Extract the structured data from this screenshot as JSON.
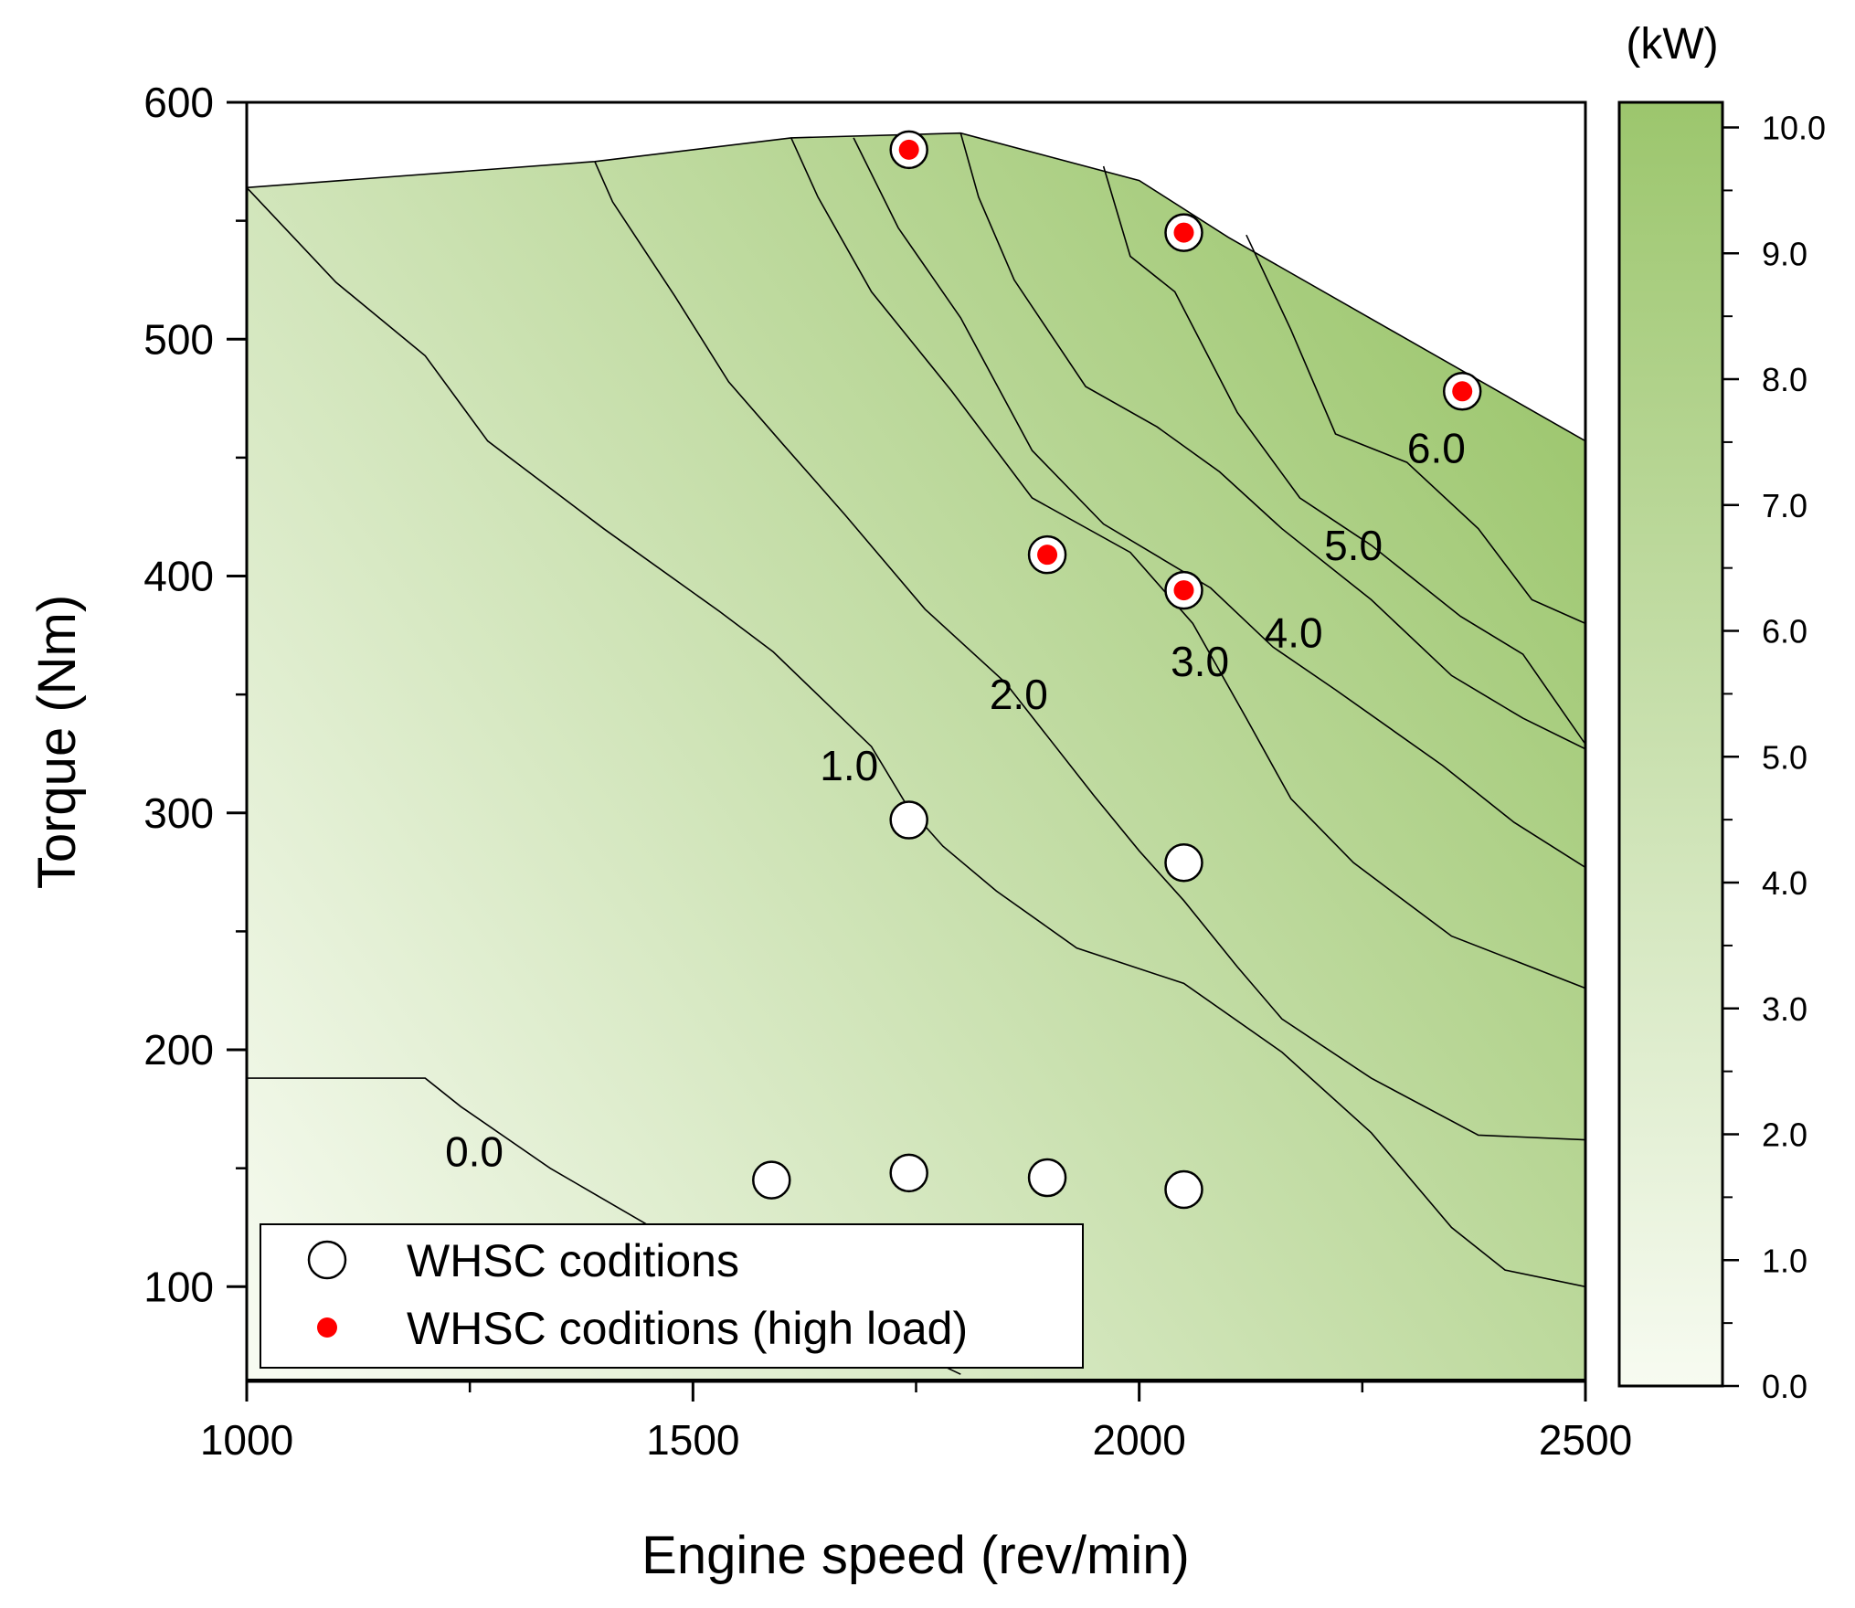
{
  "chart_data": {
    "type": "contour",
    "title": "",
    "xlabel": "Engine speed (rev/min)",
    "ylabel": "Torque (Nm)",
    "xlim": [
      1000,
      2500
    ],
    "ylim": [
      60,
      600
    ],
    "xticks": [
      1000,
      1500,
      2000,
      2500
    ],
    "xtick_labels": [
      "1000",
      "1500",
      "2000",
      "2500"
    ],
    "yticks": [
      100,
      200,
      300,
      400,
      500,
      600
    ],
    "ytick_labels": [
      "100",
      "200",
      "300",
      "400",
      "500",
      "600"
    ],
    "colorbar": {
      "unit_label": "(kW)",
      "range": [
        0,
        10.2
      ],
      "ticks": [
        0,
        1,
        2,
        3,
        4,
        5,
        6,
        7,
        8,
        9,
        10
      ],
      "tick_labels": [
        "0.0",
        "1.0",
        "2.0",
        "3.0",
        "4.0",
        "5.0",
        "6.0",
        "7.0",
        "8.0",
        "9.0",
        "10.0"
      ],
      "color_low": "#f7fbf1",
      "color_high": "#9cc66d"
    },
    "full_load_curve": [
      [
        1000,
        564
      ],
      [
        1390,
        575
      ],
      [
        1610,
        585
      ],
      [
        1800,
        587
      ],
      [
        2000,
        567
      ],
      [
        2100,
        543
      ],
      [
        2500,
        457
      ]
    ],
    "contour_lines": [
      {
        "level": 0,
        "label": "0.0",
        "label_at": [
          1255,
          157
        ],
        "points": [
          [
            1000,
            188
          ],
          [
            1200,
            188
          ],
          [
            1240,
            176
          ],
          [
            1340,
            150
          ],
          [
            1500,
            115
          ],
          [
            1650,
            90
          ],
          [
            1800,
            63
          ]
        ]
      },
      {
        "level": 1,
        "label": "1.0",
        "label_at": [
          1675,
          320
        ],
        "points": [
          [
            1000,
            564
          ],
          [
            1100,
            524
          ],
          [
            1200,
            493
          ],
          [
            1270,
            457
          ],
          [
            1400,
            420
          ],
          [
            1530,
            385
          ],
          [
            1590,
            368
          ],
          [
            1700,
            328
          ],
          [
            1740,
            303
          ],
          [
            1780,
            286
          ],
          [
            1840,
            267
          ],
          [
            1930,
            243
          ],
          [
            2050,
            228
          ],
          [
            2160,
            199
          ],
          [
            2260,
            165
          ],
          [
            2350,
            125
          ],
          [
            2410,
            107
          ],
          [
            2500,
            100
          ]
        ]
      },
      {
        "level": 2,
        "label": "2.0",
        "label_at": [
          1865,
          350
        ],
        "points": [
          [
            1390,
            575
          ],
          [
            1410,
            558
          ],
          [
            1480,
            518
          ],
          [
            1540,
            482
          ],
          [
            1600,
            456
          ],
          [
            1670,
            426
          ],
          [
            1760,
            386
          ],
          [
            1850,
            355
          ],
          [
            1950,
            307
          ],
          [
            2000,
            284
          ],
          [
            2050,
            263
          ],
          [
            2110,
            235
          ],
          [
            2160,
            213
          ],
          [
            2260,
            188
          ],
          [
            2380,
            164
          ],
          [
            2500,
            162
          ]
        ]
      },
      {
        "level": 3,
        "label": "3.0",
        "label_at": [
          2068,
          364
        ],
        "points": [
          [
            1610,
            585
          ],
          [
            1640,
            560
          ],
          [
            1700,
            520
          ],
          [
            1790,
            478
          ],
          [
            1880,
            433
          ],
          [
            1990,
            410
          ],
          [
            2060,
            380
          ],
          [
            2120,
            340
          ],
          [
            2170,
            306
          ],
          [
            2240,
            279
          ],
          [
            2350,
            248
          ],
          [
            2500,
            226
          ]
        ]
      },
      {
        "level": 4,
        "label": "4.0",
        "label_at": [
          2173,
          376
        ],
        "points": [
          [
            1680,
            585
          ],
          [
            1730,
            547
          ],
          [
            1800,
            509
          ],
          [
            1880,
            453
          ],
          [
            1960,
            422
          ],
          [
            2080,
            395
          ],
          [
            2150,
            370
          ],
          [
            2220,
            352
          ],
          [
            2340,
            320
          ],
          [
            2420,
            296
          ],
          [
            2500,
            277
          ]
        ]
      },
      {
        "level": 5,
        "label": "5.0",
        "label_at": [
          2240,
          413
        ],
        "points": [
          [
            1800,
            587
          ],
          [
            1820,
            560
          ],
          [
            1860,
            525
          ],
          [
            1940,
            480
          ],
          [
            2020,
            463
          ],
          [
            2090,
            444
          ],
          [
            2160,
            420
          ],
          [
            2260,
            390
          ],
          [
            2350,
            358
          ],
          [
            2430,
            340
          ],
          [
            2500,
            327
          ]
        ]
      },
      {
        "level": 6,
        "label": "6.0",
        "label_at": [
          2333,
          454
        ],
        "points": [
          [
            1960,
            573
          ],
          [
            1990,
            535
          ],
          [
            2040,
            520
          ],
          [
            2110,
            469
          ],
          [
            2180,
            433
          ],
          [
            2260,
            413
          ],
          [
            2360,
            383
          ],
          [
            2430,
            367
          ],
          [
            2500,
            329
          ]
        ]
      },
      {
        "level": 7,
        "label": "",
        "label_at": null,
        "points": [
          [
            2120,
            544
          ],
          [
            2170,
            504
          ],
          [
            2220,
            460
          ],
          [
            2300,
            448
          ],
          [
            2380,
            420
          ],
          [
            2440,
            390
          ],
          [
            2500,
            380
          ]
        ]
      }
    ],
    "series": [
      {
        "name": "WHSC coditions",
        "marker": "open-circle",
        "color": "#ffffff",
        "x": [
          1588,
          1742,
          1897,
          2050,
          1742,
          2050
        ],
        "y": [
          145,
          148,
          146,
          141,
          297,
          279
        ]
      },
      {
        "name": "WHSC coditions (high load)",
        "marker": "filled-circle",
        "color": "#ff0000",
        "x": [
          1742,
          2050,
          2362,
          1897,
          2050
        ],
        "y": [
          580,
          545,
          478,
          409,
          394
        ]
      }
    ],
    "legend": {
      "location": "lower-left",
      "entries": [
        "WHSC coditions",
        "WHSC coditions (high load)"
      ]
    }
  }
}
